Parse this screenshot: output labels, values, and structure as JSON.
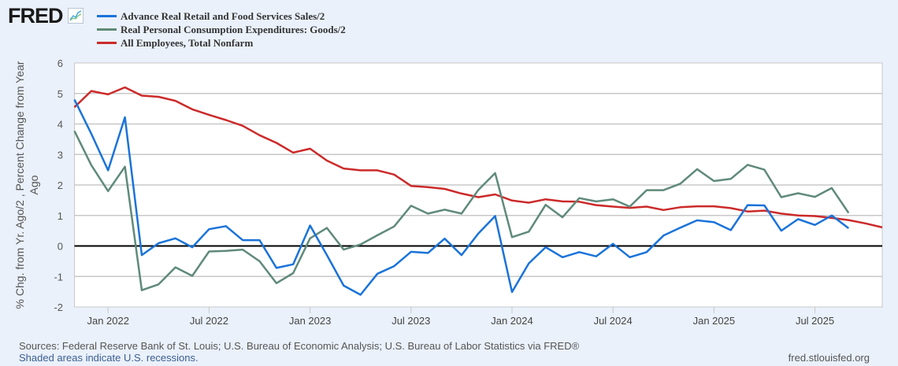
{
  "logo": {
    "text": "FRED",
    "icon": "line-chart-icon"
  },
  "colors": {
    "series_blue": "#1a73d9",
    "series_green": "#5f8a7a",
    "series_red": "#cc2a2a",
    "grid": "#c8c8c8",
    "zero_line": "#000000",
    "background": "#eaf1fb",
    "plot_bg": "#ffffff"
  },
  "footer": {
    "sources": "Sources: Federal Reserve Bank of St. Louis; U.S. Bureau of Economic Analysis; U.S. Bureau of Labor Statistics via FRED®",
    "recessions": "Shaded areas indicate U.S. recessions.",
    "url": "fred.stlouisfed.org"
  },
  "chart_data": {
    "type": "line",
    "title": "",
    "xlabel": "",
    "ylabel": "% Chg. from Yr. Ago/2 , Percent Change from Year Ago",
    "ylabel_lines": [
      "% Chg. from Yr. Ago/2 , Percent Change from Year",
      "Ago"
    ],
    "ylim": [
      -2,
      6
    ],
    "yticks": [
      -2,
      -1,
      0,
      1,
      2,
      3,
      4,
      5,
      6
    ],
    "grid": true,
    "legend_position": "top-left",
    "x_start": "2021-11",
    "x_end": "2025-11",
    "xticks": [
      {
        "label": "Jan 2022",
        "month": "2022-01"
      },
      {
        "label": "Jul 2022",
        "month": "2022-07"
      },
      {
        "label": "Jan 2023",
        "month": "2023-01"
      },
      {
        "label": "Jul 2023",
        "month": "2023-07"
      },
      {
        "label": "Jan 2024",
        "month": "2024-01"
      },
      {
        "label": "Jul 2024",
        "month": "2024-07"
      },
      {
        "label": "Jan 2025",
        "month": "2025-01"
      },
      {
        "label": "Jul 2025",
        "month": "2025-07"
      }
    ],
    "series": [
      {
        "name": "Advance Real Retail and Food Services Sales/2",
        "color": "#1a73d9",
        "start": "2021-11",
        "values": [
          4.8,
          3.68,
          2.48,
          4.22,
          -0.3,
          0.09,
          0.25,
          -0.04,
          0.55,
          0.65,
          0.19,
          0.19,
          -0.72,
          -0.6,
          0.67,
          -0.3,
          -1.3,
          -1.6,
          -0.91,
          -0.66,
          -0.19,
          -0.23,
          0.24,
          -0.3,
          0.41,
          0.98,
          -1.51,
          -0.57,
          -0.04,
          -0.37,
          -0.2,
          -0.34,
          0.07,
          -0.37,
          -0.2,
          0.34,
          0.6,
          0.84,
          0.78,
          0.52,
          1.34,
          1.33,
          0.5,
          0.88,
          0.69,
          1.0,
          0.58
        ]
      },
      {
        "name": "Real Personal Consumption Expenditures: Goods/2",
        "color": "#5f8a7a",
        "start": "2021-11",
        "values": [
          3.77,
          2.65,
          1.8,
          2.6,
          -1.45,
          -1.26,
          -0.7,
          -0.98,
          -0.18,
          -0.16,
          -0.12,
          -0.5,
          -1.22,
          -0.89,
          0.25,
          0.59,
          -0.12,
          0.05,
          0.35,
          0.64,
          1.32,
          1.06,
          1.19,
          1.06,
          1.84,
          2.39,
          0.29,
          0.47,
          1.35,
          0.94,
          1.57,
          1.46,
          1.53,
          1.29,
          1.83,
          1.83,
          2.04,
          2.52,
          2.13,
          2.2,
          2.66,
          2.5,
          1.6,
          1.73,
          1.61,
          1.9,
          1.08
        ]
      },
      {
        "name": "All Employees, Total Nonfarm",
        "color": "#cc2a2a",
        "start": "2021-11",
        "values": [
          4.55,
          5.08,
          4.97,
          5.2,
          4.93,
          4.89,
          4.76,
          4.48,
          4.3,
          4.13,
          3.94,
          3.63,
          3.38,
          3.06,
          3.19,
          2.8,
          2.54,
          2.48,
          2.48,
          2.34,
          1.97,
          1.93,
          1.87,
          1.72,
          1.6,
          1.69,
          1.49,
          1.42,
          1.53,
          1.46,
          1.45,
          1.34,
          1.29,
          1.25,
          1.29,
          1.18,
          1.27,
          1.3,
          1.3,
          1.24,
          1.13,
          1.16,
          1.06,
          1.0,
          0.98,
          0.92,
          0.85,
          0.74,
          0.61
        ]
      }
    ]
  }
}
